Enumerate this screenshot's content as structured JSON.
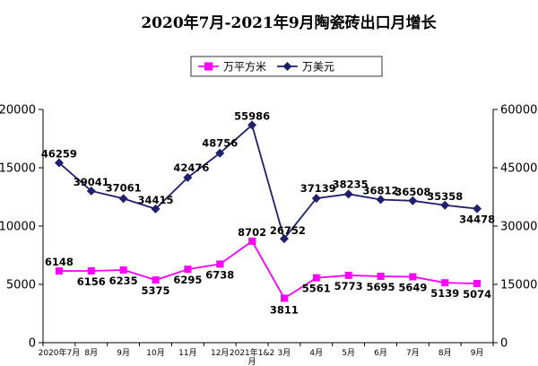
{
  "chart_data": {
    "type": "line",
    "title": "2020年7月-2021年9月陶瓷砖出口月增长",
    "categories": [
      "2020年7月",
      "8月",
      "9月",
      "10月",
      "11月",
      "12月",
      "2021年1&2月",
      "3月",
      "4月",
      "5月",
      "6月",
      "7月",
      "8月",
      "9月"
    ],
    "y_left": {
      "min": 0,
      "max": 20000,
      "ticks": [
        "0",
        "5000",
        "10000",
        "15000",
        "20000"
      ]
    },
    "y_right": {
      "min": 0,
      "max": 60000,
      "ticks": [
        "0",
        "15000",
        "30000",
        "45000",
        "60000"
      ]
    },
    "legend_position": "top",
    "series": [
      {
        "name": "万平方米",
        "axis": "left",
        "color": "#ff00ff",
        "marker": "square",
        "values": [
          6148,
          6156,
          6235,
          5375,
          6295,
          6738,
          8702,
          3811,
          5561,
          5773,
          5695,
          5649,
          5139,
          5074
        ]
      },
      {
        "name": "万美元",
        "axis": "right",
        "color": "#1f1f6e",
        "marker": "diamond",
        "values": [
          46259,
          39041,
          37061,
          34415,
          42476,
          48756,
          55986,
          26752,
          37139,
          38235,
          36812,
          36508,
          35358,
          34478
        ]
      }
    ]
  }
}
